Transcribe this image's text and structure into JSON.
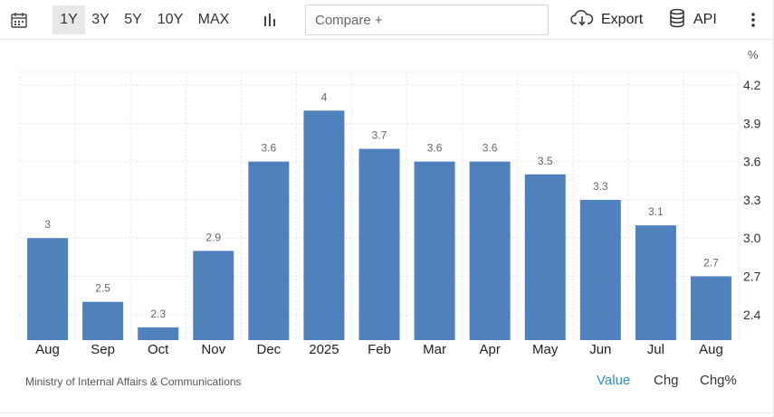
{
  "toolbar": {
    "ranges": [
      {
        "label": "1Y",
        "active": true
      },
      {
        "label": "3Y",
        "active": false
      },
      {
        "label": "5Y",
        "active": false
      },
      {
        "label": "10Y",
        "active": false
      },
      {
        "label": "MAX",
        "active": false
      }
    ],
    "compare_placeholder": "Compare +",
    "export_label": "Export",
    "api_label": "API",
    "icons": {
      "calendar": "calendar-icon",
      "chart_type": "bar-chart-icon",
      "export": "cloud-download-icon",
      "api": "database-icon",
      "more": "vertical-dots-icon"
    }
  },
  "unit": "%",
  "source": "Ministry of Internal Affairs & Communications",
  "footer_tabs": [
    {
      "label": "Value",
      "active": true
    },
    {
      "label": "Chg",
      "active": false
    },
    {
      "label": "Chg%",
      "active": false
    }
  ],
  "colors": {
    "bar": "#4f81bd",
    "active_tab": "#2f8fd6",
    "grid": "#e8e8e8"
  },
  "chart_data": {
    "type": "bar",
    "categories": [
      "Aug",
      "Sep",
      "Oct",
      "Nov",
      "Dec",
      "2025",
      "Feb",
      "Mar",
      "Apr",
      "May",
      "Jun",
      "Jul",
      "Aug"
    ],
    "values": [
      3,
      2.5,
      2.3,
      2.9,
      3.6,
      4,
      3.7,
      3.6,
      3.6,
      3.5,
      3.3,
      3.1,
      2.7
    ],
    "data_labels": [
      "3",
      "2.5",
      "2.3",
      "2.9",
      "3.6",
      "4",
      "3.7",
      "3.6",
      "3.6",
      "3.5",
      "3.3",
      "3.1",
      "2.7"
    ],
    "y_ticks": [
      2.4,
      2.7,
      3.0,
      3.3,
      3.6,
      3.9,
      4.2
    ],
    "y_tick_labels": [
      "2.4",
      "2.7",
      "3.0",
      "3.3",
      "3.6",
      "3.9",
      "4.2"
    ],
    "ylim": [
      2.2,
      4.3
    ],
    "grid": true,
    "axis_position": "right"
  }
}
